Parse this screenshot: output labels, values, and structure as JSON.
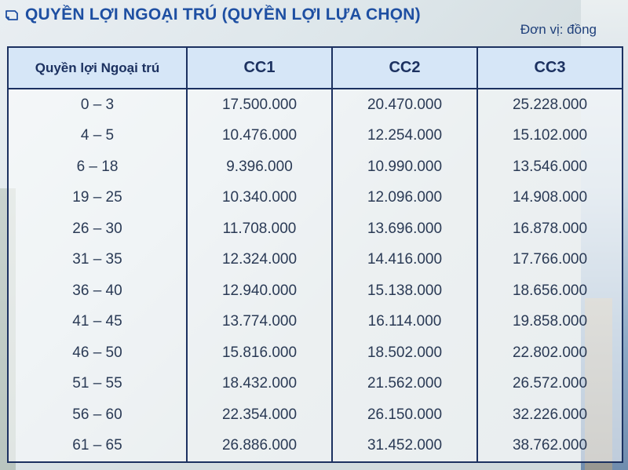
{
  "title": "QUYỀN LỢI NGOẠI TRÚ (QUYỀN LỢI LỰA CHỌN)",
  "unit_label": "Đơn vị: đồng",
  "colors": {
    "title": "#1e4fa2",
    "header_bg": "#d6e6f7",
    "border": "#1c3160"
  },
  "table": {
    "headers": [
      "Quyền lợi Ngoại trú",
      "CC1",
      "CC2",
      "CC3"
    ],
    "rows": [
      [
        "0 – 3",
        "17.500.000",
        "20.470.000",
        "25.228.000"
      ],
      [
        "4 – 5",
        "10.476.000",
        "12.254.000",
        "15.102.000"
      ],
      [
        "6 – 18",
        "9.396.000",
        "10.990.000",
        "13.546.000"
      ],
      [
        "19 – 25",
        "10.340.000",
        "12.096.000",
        "14.908.000"
      ],
      [
        "26 – 30",
        "11.708.000",
        "13.696.000",
        "16.878.000"
      ],
      [
        "31 – 35",
        "12.324.000",
        "14.416.000",
        "17.766.000"
      ],
      [
        "36 – 40",
        "12.940.000",
        "15.138.000",
        "18.656.000"
      ],
      [
        "41 – 45",
        "13.774.000",
        "16.114.000",
        "19.858.000"
      ],
      [
        "46 – 50",
        "15.816.000",
        "18.502.000",
        "22.802.000"
      ],
      [
        "51 – 55",
        "18.432.000",
        "21.562.000",
        "26.572.000"
      ],
      [
        "56 – 60",
        "22.354.000",
        "26.150.000",
        "32.226.000"
      ],
      [
        "61 – 65",
        "26.886.000",
        "31.452.000",
        "38.762.000"
      ]
    ]
  }
}
